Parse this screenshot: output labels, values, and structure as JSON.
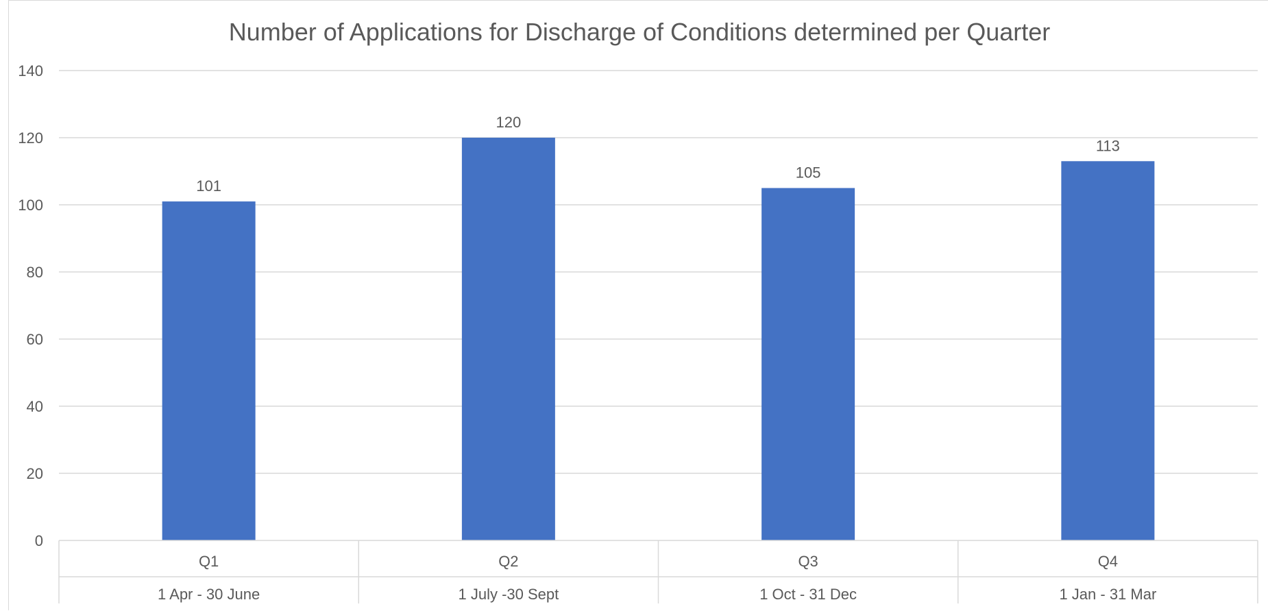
{
  "chart_data": {
    "type": "bar",
    "title": "Number of Applications for Discharge of Conditions determined per Quarter",
    "xlabel": "",
    "ylabel": "",
    "ylim": [
      0,
      140
    ],
    "yticks": [
      0,
      20,
      40,
      60,
      80,
      100,
      120,
      140
    ],
    "categories": [
      "Q1",
      "Q2",
      "Q3",
      "Q4"
    ],
    "subcategories": [
      "1 Apr - 30 June",
      "1 July -30 Sept",
      "1 Oct - 31 Dec",
      "1 Jan - 31 Mar"
    ],
    "values": [
      101,
      120,
      105,
      113
    ],
    "data_labels": [
      "101",
      "120",
      "105",
      "113"
    ],
    "grid": true,
    "legend": "none",
    "colors": {
      "bar": "#4472c4",
      "grid": "#d9d9d9",
      "text": "#595959",
      "title": "#595959"
    }
  }
}
